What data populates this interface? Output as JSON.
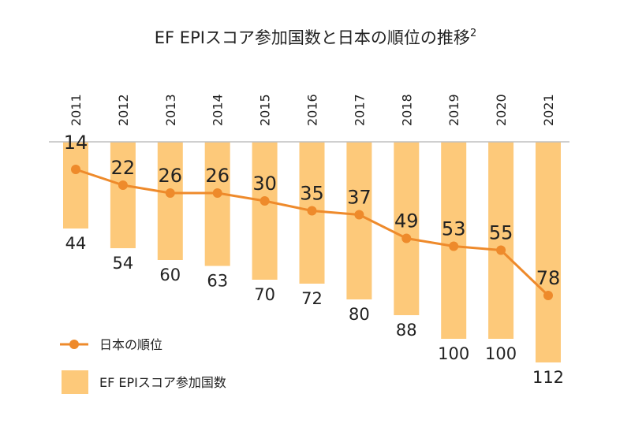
{
  "chart_data": {
    "type": "bar+line",
    "title": "EF EPIスコア参加国数と日本の順位の推移",
    "title_superscript": "2",
    "categories": [
      "2011",
      "2012",
      "2013",
      "2014",
      "2015",
      "2016",
      "2017",
      "2018",
      "2019",
      "2020",
      "2021"
    ],
    "series": [
      {
        "name": "EF EPIスコア参加国数",
        "type": "bar",
        "values": [
          44,
          54,
          60,
          63,
          70,
          72,
          80,
          88,
          100,
          100,
          112
        ]
      },
      {
        "name": "日本の順位",
        "type": "line",
        "values": [
          14,
          22,
          26,
          26,
          30,
          35,
          37,
          49,
          53,
          55,
          78
        ]
      }
    ],
    "y_axis": {
      "inverted": true,
      "min": 0,
      "max": 112
    },
    "legend": {
      "position": "bottom-left",
      "entries": [
        "日本の順位",
        "EF EPIスコア参加国数"
      ]
    },
    "colors": {
      "bar": "#fdc97a",
      "line": "#ee8a2b",
      "axis": "#bfbfbf",
      "text": "#222222"
    }
  }
}
